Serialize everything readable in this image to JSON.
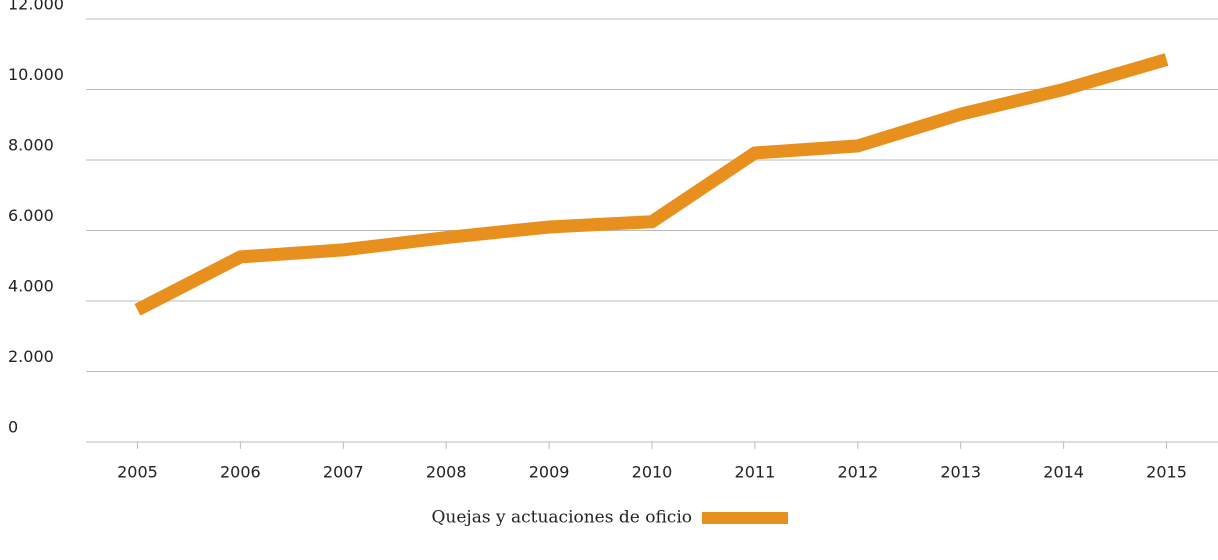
{
  "chart_data": {
    "type": "line",
    "categories": [
      "2005",
      "2006",
      "2007",
      "2008",
      "2009",
      "2010",
      "2011",
      "2012",
      "2013",
      "2014",
      "2015"
    ],
    "series": [
      {
        "name": "Quejas y actuaciones de oficio",
        "color": "#e8901e",
        "values": [
          3750,
          5250,
          5450,
          5800,
          6100,
          6250,
          8200,
          8400,
          9300,
          10000,
          10850
        ]
      }
    ],
    "ylim": [
      0,
      12000
    ],
    "yticks": [
      0,
      {
        "value": 2000,
        "label": "2.000"
      },
      {
        "value": 4000,
        "label": "4.000"
      },
      {
        "value": 6000,
        "label": "6.000"
      },
      {
        "value": 8000,
        "label": "8.000"
      },
      {
        "value": 10000,
        "label": "10.000"
      },
      {
        "value": 12000,
        "label": "12.000"
      }
    ],
    "grid": true,
    "legend": "bottom"
  }
}
